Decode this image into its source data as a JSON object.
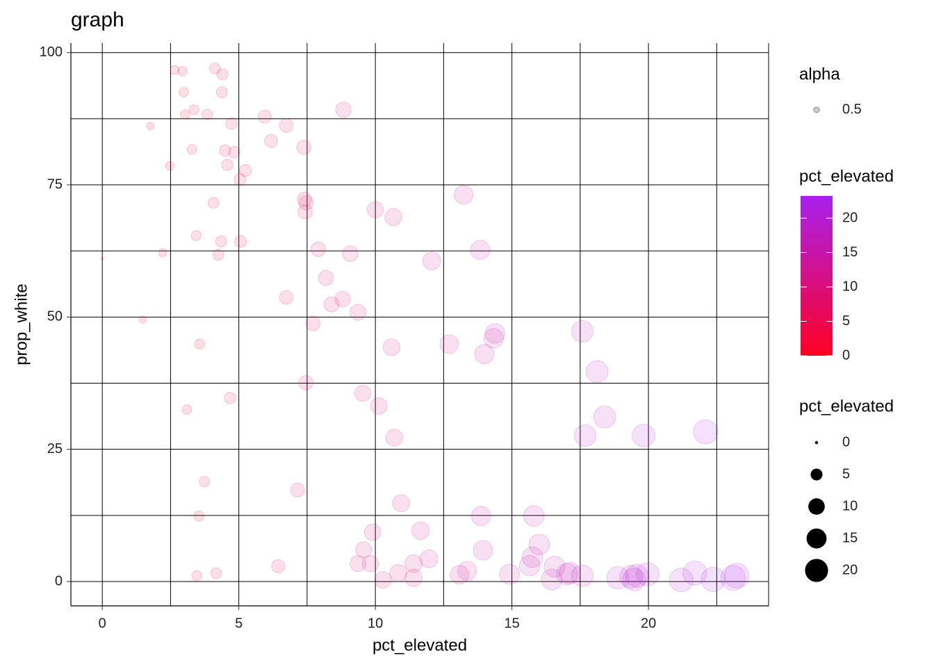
{
  "chart_data": {
    "type": "scatter",
    "title": "graph",
    "x_label": "pct_elevated",
    "y_label": "prop_white",
    "x": [
      0,
      1.48,
      1.76,
      2.21,
      2.47,
      2.65,
      2.93,
      2.98,
      3.03,
      3.1,
      3.28,
      3.36,
      3.44,
      3.46,
      3.54,
      3.56,
      3.74,
      3.84,
      4.07,
      4.12,
      4.17,
      4.25,
      4.35,
      4.38,
      4.4,
      4.5,
      4.58,
      4.68,
      4.73,
      4.83,
      5.04,
      5.06,
      5.24,
      5.95,
      6.18,
      6.44,
      6.74,
      6.74,
      7.15,
      7.38,
      7.4,
      7.43,
      7.46,
      7.46,
      7.71,
      7.91,
      8.19,
      8.4,
      8.8,
      8.83,
      9.08,
      9.36,
      9.36,
      9.54,
      9.57,
      9.82,
      9.9,
      10.0,
      10.13,
      10.28,
      10.59,
      10.66,
      10.69,
      10.84,
      10.94,
      11.4,
      11.4,
      11.65,
      11.96,
      12.06,
      12.7,
      13.08,
      13.23,
      13.36,
      13.84,
      13.87,
      13.94,
      13.99,
      14.33,
      14.38,
      14.91,
      15.65,
      15.75,
      15.8,
      16.0,
      16.46,
      16.56,
      17.02,
      17.12,
      17.58,
      17.58,
      17.68,
      18.12,
      18.4,
      18.88,
      19.36,
      19.47,
      19.57,
      19.82,
      19.97,
      21.2,
      21.7,
      22.09,
      22.37,
      23.1,
      23.23
    ],
    "values": [
      61.1,
      49.5,
      86.1,
      62.2,
      78.6,
      96.7,
      96.5,
      92.5,
      88.3,
      32.5,
      81.7,
      89.2,
      65.4,
      1.1,
      12.4,
      44.9,
      18.9,
      88.3,
      71.6,
      97.0,
      1.6,
      61.8,
      64.3,
      92.5,
      95.9,
      81.5,
      78.8,
      34.7,
      86.6,
      81.2,
      76.0,
      64.3,
      77.7,
      87.9,
      83.3,
      2.9,
      86.2,
      53.7,
      17.3,
      82.1,
      72.3,
      69.9,
      71.6,
      37.6,
      48.8,
      62.8,
      57.4,
      52.4,
      53.4,
      89.2,
      62.0,
      50.9,
      3.4,
      35.6,
      6.0,
      3.4,
      9.3,
      70.3,
      33.2,
      0.3,
      44.3,
      68.9,
      27.2,
      1.6,
      14.8,
      3.4,
      0.7,
      9.6,
      4.3,
      60.6,
      44.9,
      1.3,
      73.1,
      2.0,
      62.7,
      12.4,
      5.9,
      43.0,
      46.0,
      46.9,
      1.4,
      3.0,
      4.6,
      12.4,
      7.0,
      0.4,
      2.8,
      1.4,
      1.6,
      47.3,
      1.1,
      27.6,
      39.7,
      31.1,
      0.7,
      0.9,
      0.4,
      1.1,
      27.6,
      1.4,
      0.3,
      1.6,
      28.3,
      0.4,
      0.7,
      1.1
    ],
    "xlim": [
      -1.15,
      24.4
    ],
    "ylim": [
      -4.6,
      101.8
    ],
    "xticks": [
      0,
      5,
      10,
      15,
      20
    ],
    "yticks": [
      0,
      25,
      50,
      75,
      100
    ],
    "x_minor_ticks": [
      2.5,
      7.5,
      12.5,
      17.5,
      22.5
    ],
    "y_minor_ticks": [
      12.5,
      37.5,
      62.5,
      87.5
    ],
    "grid": true,
    "color_low": "#ff0022",
    "color_high": "#a820ee",
    "opacity": 0.5,
    "legends": [
      {
        "title": "alpha",
        "labels": [
          "0.5"
        ]
      },
      {
        "title": "pct_elevated",
        "ticks": [
          0,
          5,
          10,
          15,
          20
        ]
      },
      {
        "title": "pct_elevated",
        "breaks": [
          0,
          5,
          10,
          15,
          20
        ]
      }
    ]
  }
}
